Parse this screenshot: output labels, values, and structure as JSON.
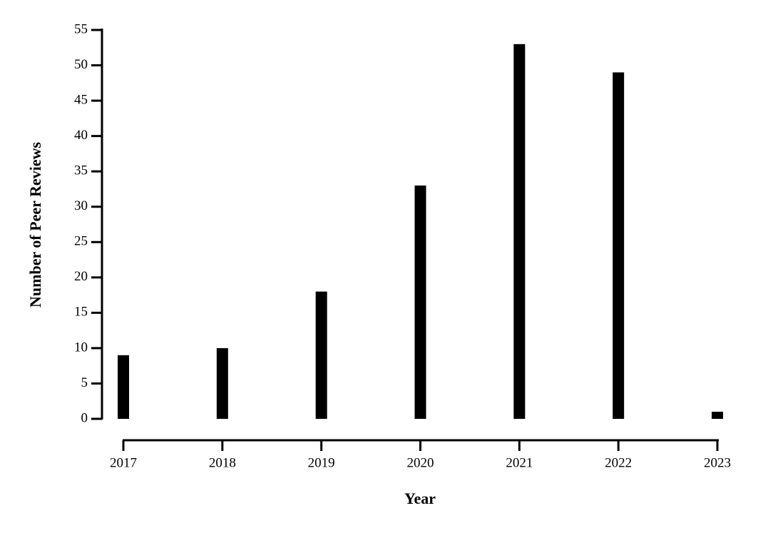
{
  "chart_data": {
    "type": "bar",
    "x_label": "Year",
    "y_label": "Number of Peer Reviews",
    "categories": [
      "2017",
      "2018",
      "2019",
      "2020",
      "2021",
      "2022",
      "2023"
    ],
    "values": [
      9,
      10,
      18,
      33,
      53,
      49,
      1
    ],
    "color": "#000000",
    "ylim": [
      0,
      55
    ],
    "yticks": [
      0,
      5,
      10,
      15,
      20,
      25,
      30,
      35,
      40,
      45,
      50,
      55
    ],
    "grid": false
  }
}
